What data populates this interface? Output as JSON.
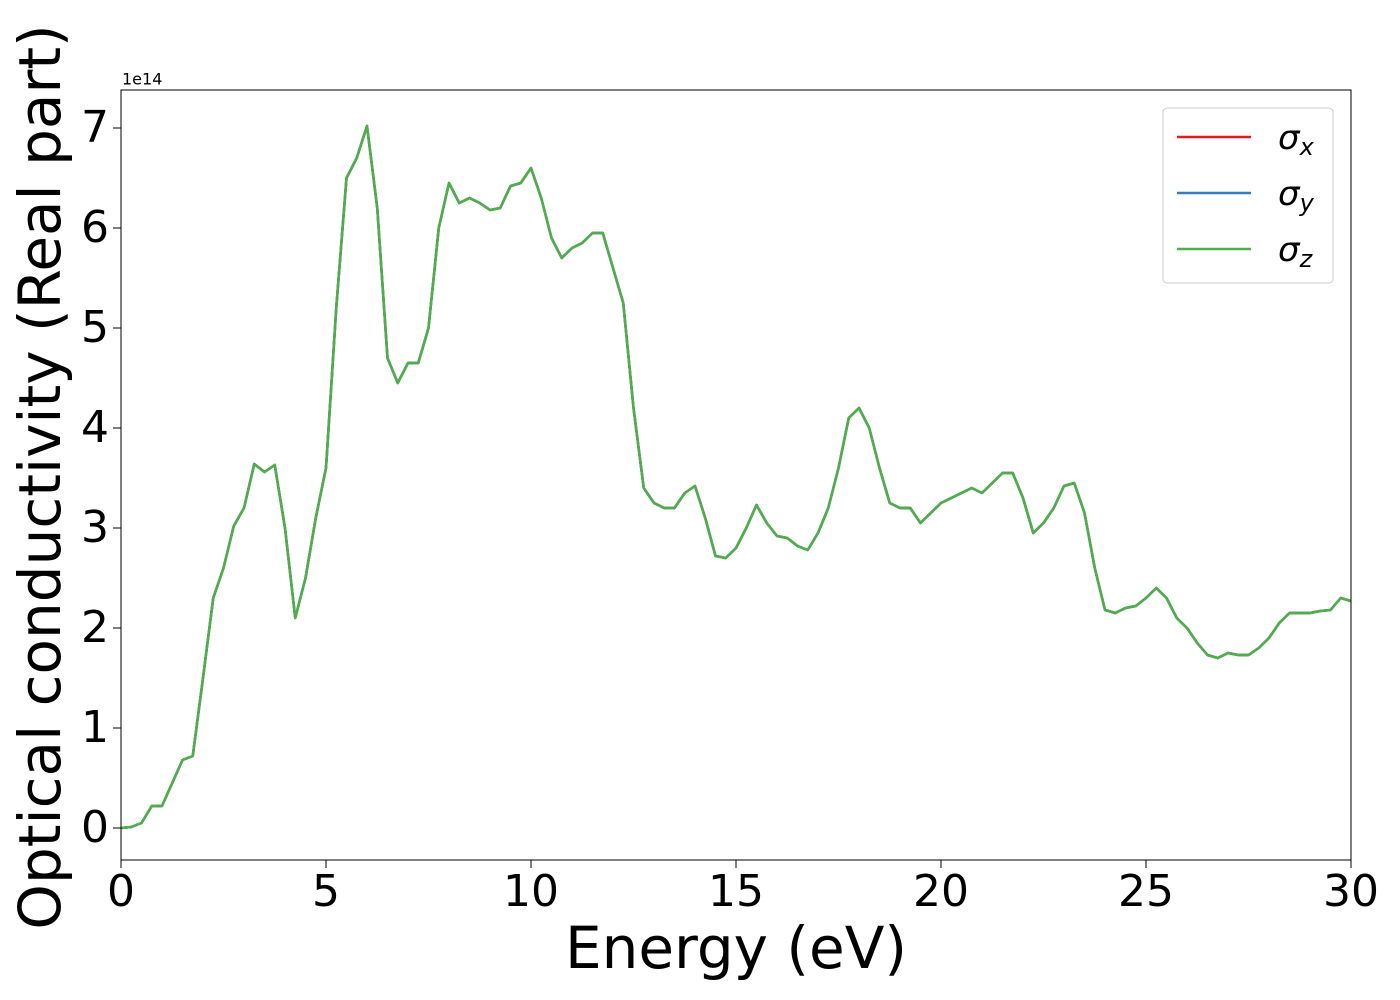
{
  "chart_data": {
    "type": "line",
    "x_label": "Energy (eV)",
    "y_label": "Optical conductivity (Real part)",
    "y_offset_label": "1e14",
    "xlim": [
      0,
      30
    ],
    "ylim": [
      -0.32,
      7.38
    ],
    "xticks": [
      0,
      5,
      10,
      15,
      20,
      25,
      30
    ],
    "yticks": [
      0,
      1,
      2,
      3,
      4,
      5,
      6,
      7
    ],
    "legend": "upper right",
    "grid": false,
    "x": [
      0,
      0.25,
      0.5,
      0.75,
      1,
      1.25,
      1.5,
      1.75,
      2,
      2.25,
      2.5,
      2.75,
      3,
      3.25,
      3.5,
      3.75,
      4,
      4.25,
      4.5,
      4.75,
      5,
      5.25,
      5.5,
      5.75,
      6,
      6.25,
      6.5,
      6.75,
      7,
      7.25,
      7.5,
      7.75,
      8,
      8.25,
      8.5,
      8.75,
      9,
      9.25,
      9.5,
      9.75,
      10,
      10.25,
      10.5,
      10.75,
      11,
      11.25,
      11.5,
      11.75,
      12,
      12.25,
      12.5,
      12.75,
      13,
      13.25,
      13.5,
      13.75,
      14,
      14.25,
      14.5,
      14.75,
      15,
      15.25,
      15.5,
      15.75,
      16,
      16.25,
      16.5,
      16.75,
      17,
      17.25,
      17.5,
      17.75,
      18,
      18.25,
      18.5,
      18.75,
      19,
      19.25,
      19.5,
      19.75,
      20,
      20.25,
      20.5,
      20.75,
      21,
      21.25,
      21.5,
      21.75,
      22,
      22.25,
      22.5,
      22.75,
      23,
      23.25,
      23.5,
      23.75,
      24,
      24.25,
      24.5,
      24.75,
      25,
      25.25,
      25.5,
      25.75,
      26,
      26.25,
      26.5,
      26.75,
      27,
      27.25,
      27.5,
      27.75,
      28,
      28.25,
      28.5,
      28.75,
      29,
      29.25,
      29.5,
      29.75,
      30
    ],
    "series": [
      {
        "name": "σx",
        "color": "#e41a1c",
        "values": [
          0,
          0.01,
          0.05,
          0.22,
          0.22,
          0.45,
          0.68,
          0.72,
          1.5,
          2.3,
          2.6,
          3.02,
          3.2,
          3.64,
          3.56,
          3.63,
          3.0,
          2.1,
          2.5,
          3.1,
          3.6,
          5.2,
          6.5,
          6.7,
          7.02,
          6.2,
          4.7,
          4.45,
          4.65,
          4.65,
          5.0,
          6.0,
          6.45,
          6.25,
          6.3,
          6.25,
          6.18,
          6.2,
          6.42,
          6.45,
          6.6,
          6.3,
          5.9,
          5.7,
          5.8,
          5.85,
          5.95,
          5.95,
          5.6,
          5.25,
          4.2,
          3.4,
          3.25,
          3.2,
          3.2,
          3.35,
          3.42,
          3.1,
          2.72,
          2.7,
          2.8,
          3.0,
          3.23,
          3.05,
          2.92,
          2.9,
          2.82,
          2.78,
          2.95,
          3.2,
          3.6,
          4.1,
          4.2,
          4.0,
          3.6,
          3.25,
          3.2,
          3.2,
          3.05,
          3.15,
          3.25,
          3.3,
          3.35,
          3.4,
          3.35,
          3.45,
          3.55,
          3.55,
          3.3,
          2.95,
          3.05,
          3.2,
          3.42,
          3.45,
          3.15,
          2.6,
          2.18,
          2.15,
          2.2,
          2.22,
          2.3,
          2.4,
          2.3,
          2.1,
          2.0,
          1.85,
          1.73,
          1.7,
          1.75,
          1.73,
          1.73,
          1.8,
          1.9,
          2.05,
          2.15,
          2.15,
          2.15,
          2.17,
          2.18,
          2.3,
          2.27
        ]
      },
      {
        "name": "σy",
        "color": "#377eb8",
        "values": [
          0,
          0.01,
          0.05,
          0.22,
          0.22,
          0.45,
          0.68,
          0.72,
          1.5,
          2.3,
          2.6,
          3.02,
          3.2,
          3.64,
          3.56,
          3.63,
          3.0,
          2.1,
          2.5,
          3.1,
          3.6,
          5.2,
          6.5,
          6.7,
          7.02,
          6.2,
          4.7,
          4.45,
          4.65,
          4.65,
          5.0,
          6.0,
          6.45,
          6.25,
          6.3,
          6.25,
          6.18,
          6.2,
          6.42,
          6.45,
          6.6,
          6.3,
          5.9,
          5.7,
          5.8,
          5.85,
          5.95,
          5.95,
          5.6,
          5.25,
          4.2,
          3.4,
          3.25,
          3.2,
          3.2,
          3.35,
          3.42,
          3.1,
          2.72,
          2.7,
          2.8,
          3.0,
          3.23,
          3.05,
          2.92,
          2.9,
          2.82,
          2.78,
          2.95,
          3.2,
          3.6,
          4.1,
          4.2,
          4.0,
          3.6,
          3.25,
          3.2,
          3.2,
          3.05,
          3.15,
          3.25,
          3.3,
          3.35,
          3.4,
          3.35,
          3.45,
          3.55,
          3.55,
          3.3,
          2.95,
          3.05,
          3.2,
          3.42,
          3.45,
          3.15,
          2.6,
          2.18,
          2.15,
          2.2,
          2.22,
          2.3,
          2.4,
          2.3,
          2.1,
          2.0,
          1.85,
          1.73,
          1.7,
          1.75,
          1.73,
          1.73,
          1.8,
          1.9,
          2.05,
          2.15,
          2.15,
          2.15,
          2.17,
          2.18,
          2.3,
          2.27
        ]
      },
      {
        "name": "σz",
        "color": "#4daf4a",
        "values": [
          0,
          0.01,
          0.05,
          0.22,
          0.22,
          0.45,
          0.68,
          0.72,
          1.5,
          2.3,
          2.6,
          3.02,
          3.2,
          3.64,
          3.56,
          3.63,
          3.0,
          2.1,
          2.5,
          3.1,
          3.6,
          5.2,
          6.5,
          6.7,
          7.02,
          6.2,
          4.7,
          4.45,
          4.65,
          4.65,
          5.0,
          6.0,
          6.45,
          6.25,
          6.3,
          6.25,
          6.18,
          6.2,
          6.42,
          6.45,
          6.6,
          6.3,
          5.9,
          5.7,
          5.8,
          5.85,
          5.95,
          5.95,
          5.6,
          5.25,
          4.2,
          3.4,
          3.25,
          3.2,
          3.2,
          3.35,
          3.42,
          3.1,
          2.72,
          2.7,
          2.8,
          3.0,
          3.23,
          3.05,
          2.92,
          2.9,
          2.82,
          2.78,
          2.95,
          3.2,
          3.6,
          4.1,
          4.2,
          4.0,
          3.6,
          3.25,
          3.2,
          3.2,
          3.05,
          3.15,
          3.25,
          3.3,
          3.35,
          3.4,
          3.35,
          3.45,
          3.55,
          3.55,
          3.3,
          2.95,
          3.05,
          3.2,
          3.42,
          3.45,
          3.15,
          2.6,
          2.18,
          2.15,
          2.2,
          2.22,
          2.3,
          2.4,
          2.3,
          2.1,
          2.0,
          1.85,
          1.73,
          1.7,
          1.75,
          1.73,
          1.73,
          1.8,
          1.9,
          2.05,
          2.15,
          2.15,
          2.15,
          2.17,
          2.18,
          2.3,
          2.27
        ]
      }
    ]
  }
}
